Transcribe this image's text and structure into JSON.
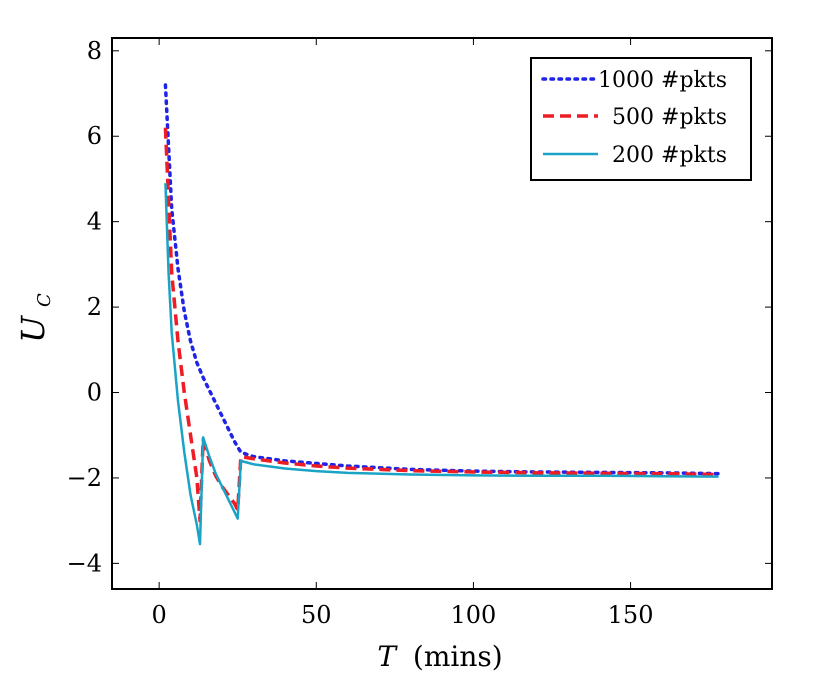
{
  "chart_data": {
    "type": "line",
    "xlabel_var": "T",
    "xlabel_unit": "(mins)",
    "ylabel_main": "U",
    "ylabel_sub": "C",
    "xlim": [
      -15,
      195
    ],
    "ylim": [
      -4.6,
      8.3
    ],
    "x_ticks": [
      0,
      50,
      100,
      150
    ],
    "x_tick_labels": [
      "0",
      "50",
      "100",
      "150"
    ],
    "y_ticks": [
      -4,
      -2,
      0,
      2,
      4,
      6,
      8
    ],
    "y_tick_labels": [
      "−4",
      "−2",
      "0",
      "2",
      "4",
      "6",
      "8"
    ],
    "grid": false,
    "legend_position": "top-right",
    "series": [
      {
        "name": "1000 #pkts",
        "color": "#1f24e6",
        "style": "dotted",
        "x": [
          2,
          4,
          6,
          8,
          10,
          12,
          14,
          16,
          18,
          20,
          22,
          24,
          26,
          30,
          40,
          50,
          60,
          80,
          100,
          120,
          140,
          160,
          178
        ],
        "y": [
          7.2,
          4.3,
          2.9,
          1.9,
          1.2,
          0.7,
          0.35,
          0.05,
          -0.25,
          -0.55,
          -0.85,
          -1.15,
          -1.4,
          -1.5,
          -1.6,
          -1.66,
          -1.72,
          -1.8,
          -1.84,
          -1.86,
          -1.87,
          -1.88,
          -1.9
        ]
      },
      {
        "name": "500 #pkts",
        "color": "#ee1c25",
        "style": "dashed",
        "x": [
          2,
          4,
          6,
          8,
          10,
          12,
          13,
          14,
          16,
          18,
          20,
          22,
          24,
          25,
          26,
          30,
          40,
          50,
          60,
          80,
          100,
          120,
          140,
          160,
          178
        ],
        "y": [
          6.2,
          2.8,
          1.2,
          0.0,
          -1.0,
          -2.0,
          -3.0,
          -1.1,
          -1.6,
          -1.95,
          -2.2,
          -2.4,
          -2.6,
          -2.75,
          -1.5,
          -1.55,
          -1.65,
          -1.72,
          -1.77,
          -1.83,
          -1.86,
          -1.88,
          -1.89,
          -1.9,
          -1.92
        ]
      },
      {
        "name": "200 #pkts",
        "color": "#1ba3c6",
        "style": "solid",
        "x": [
          2,
          3,
          4,
          6,
          8,
          10,
          12,
          13,
          14,
          16,
          18,
          20,
          22,
          24,
          25,
          26,
          30,
          40,
          50,
          60,
          80,
          100,
          120,
          140,
          160,
          178
        ],
        "y": [
          4.9,
          2.8,
          1.4,
          -0.2,
          -1.4,
          -2.4,
          -3.1,
          -3.55,
          -1.05,
          -1.5,
          -1.9,
          -2.2,
          -2.5,
          -2.8,
          -2.95,
          -1.6,
          -1.68,
          -1.78,
          -1.84,
          -1.88,
          -1.92,
          -1.94,
          -1.95,
          -1.95,
          -1.96,
          -1.97
        ]
      }
    ]
  }
}
